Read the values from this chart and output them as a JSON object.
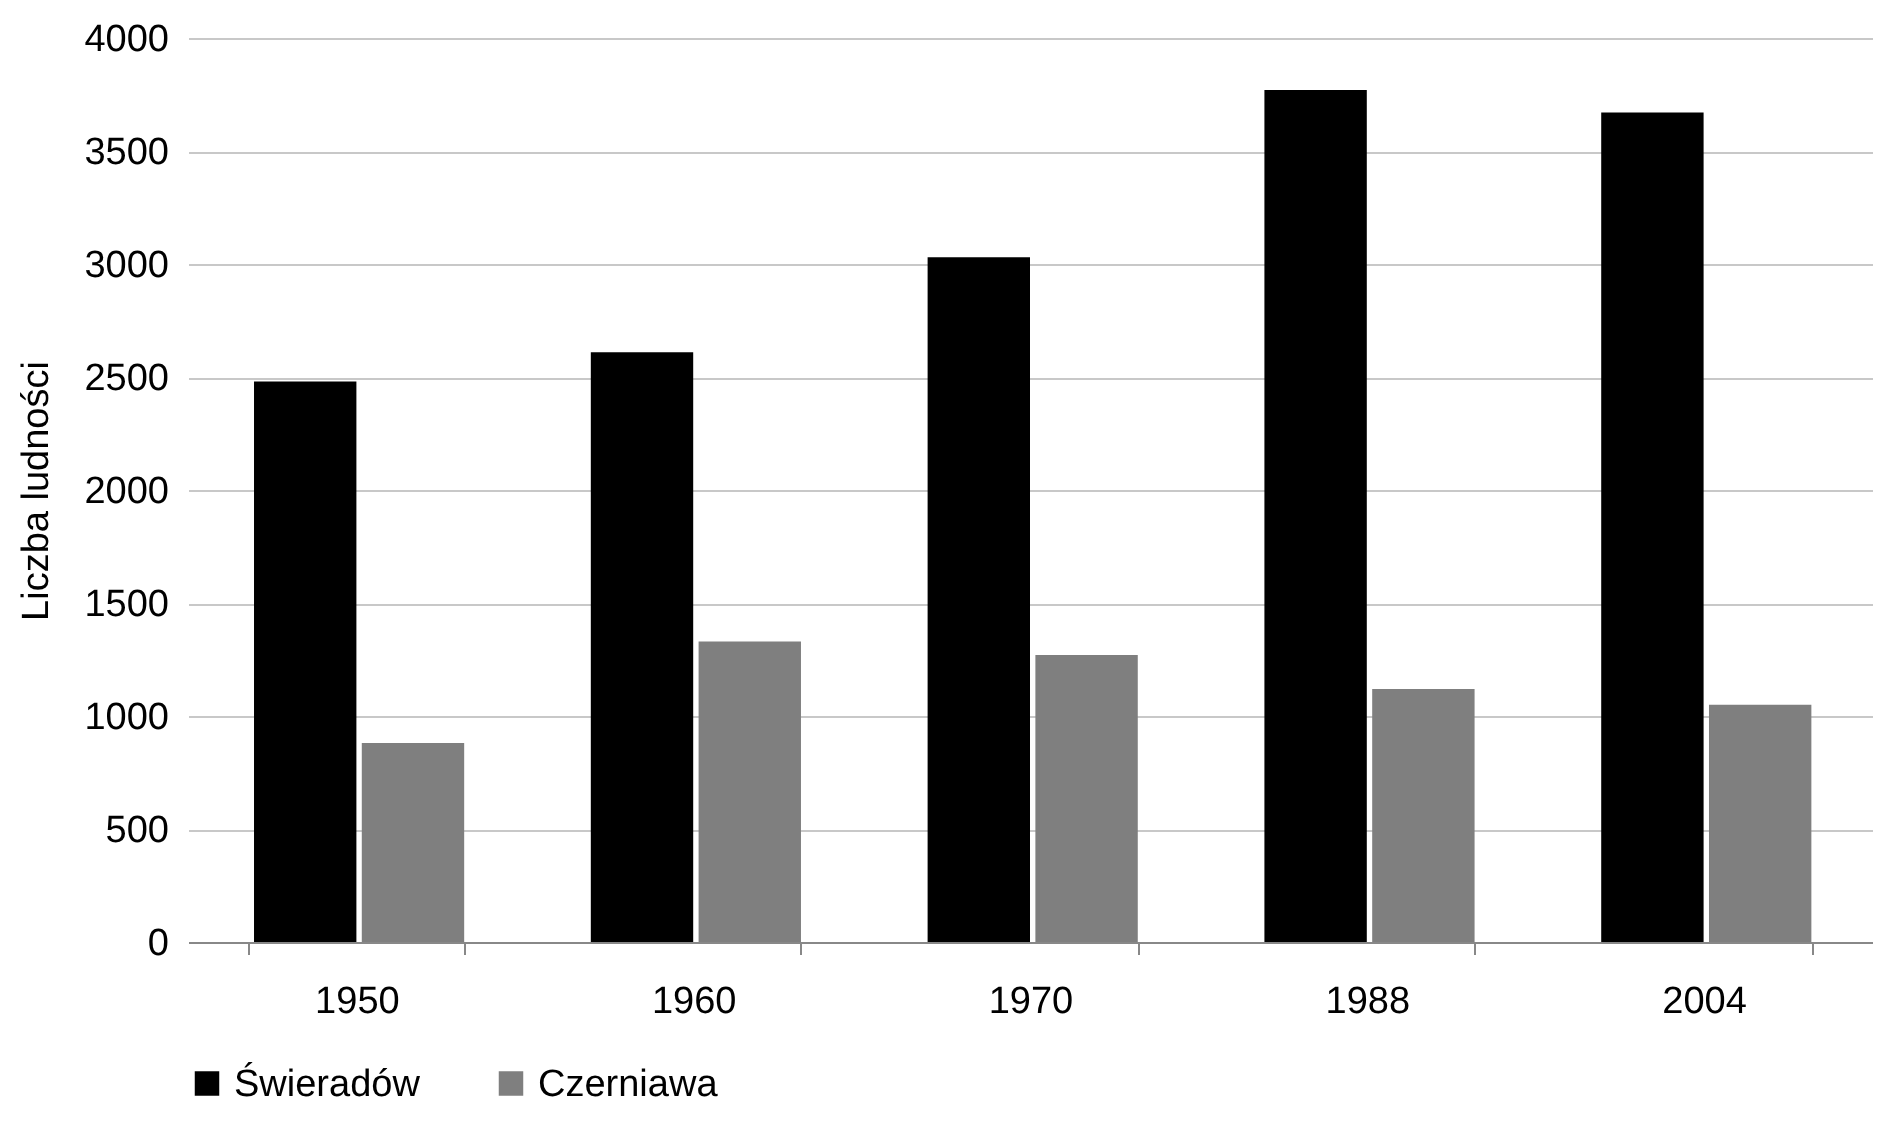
{
  "chart_data": {
    "type": "bar",
    "ylabel": "Liczba ludności",
    "categories": [
      "1950",
      "1960",
      "1970",
      "1988",
      "2004"
    ],
    "series": [
      {
        "name": "Świeradów",
        "color": "#000000",
        "values": [
          2480,
          2610,
          3030,
          3770,
          3670
        ]
      },
      {
        "name": "Czerniawa",
        "color": "#7f7f7f",
        "values": [
          880,
          1330,
          1270,
          1120,
          1050
        ]
      }
    ],
    "ylim": [
      0,
      4000
    ],
    "yticks": [
      0,
      500,
      1000,
      1500,
      2000,
      2500,
      3000,
      3500,
      4000
    ],
    "grid": "y",
    "legend": "bottom"
  }
}
